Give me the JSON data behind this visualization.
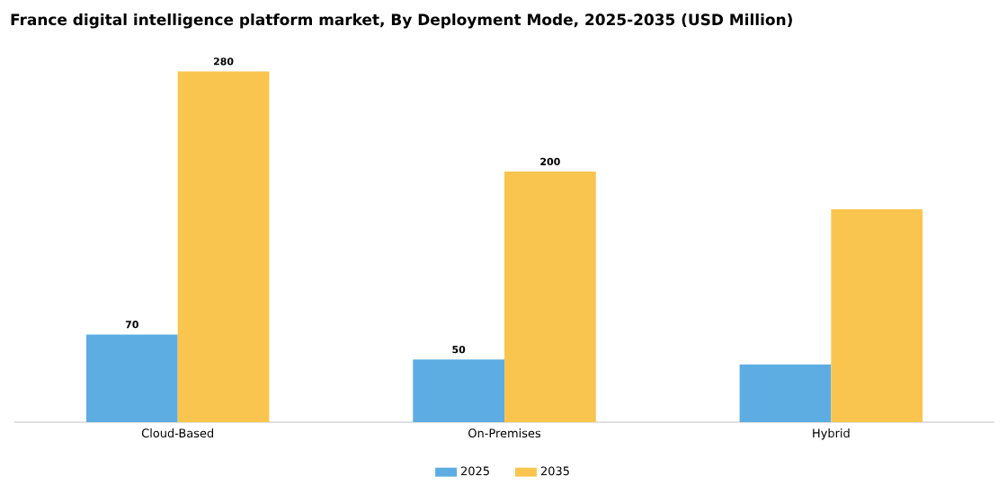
{
  "chart_data": {
    "type": "bar",
    "title": "France digital intelligence platform market, By Deployment Mode, 2025-2035 (USD Million)",
    "categories": [
      "Cloud-Based",
      "On-Premises",
      "Hybrid"
    ],
    "series": [
      {
        "name": "2025",
        "color": "#5dade2",
        "values": [
          70,
          50,
          46
        ],
        "value_labels": [
          "70",
          "50",
          null
        ]
      },
      {
        "name": "2035",
        "color": "#f9c54e",
        "values": [
          280,
          200,
          170
        ],
        "value_labels": [
          "280",
          "200",
          null
        ]
      }
    ],
    "legend": "bottom"
  }
}
